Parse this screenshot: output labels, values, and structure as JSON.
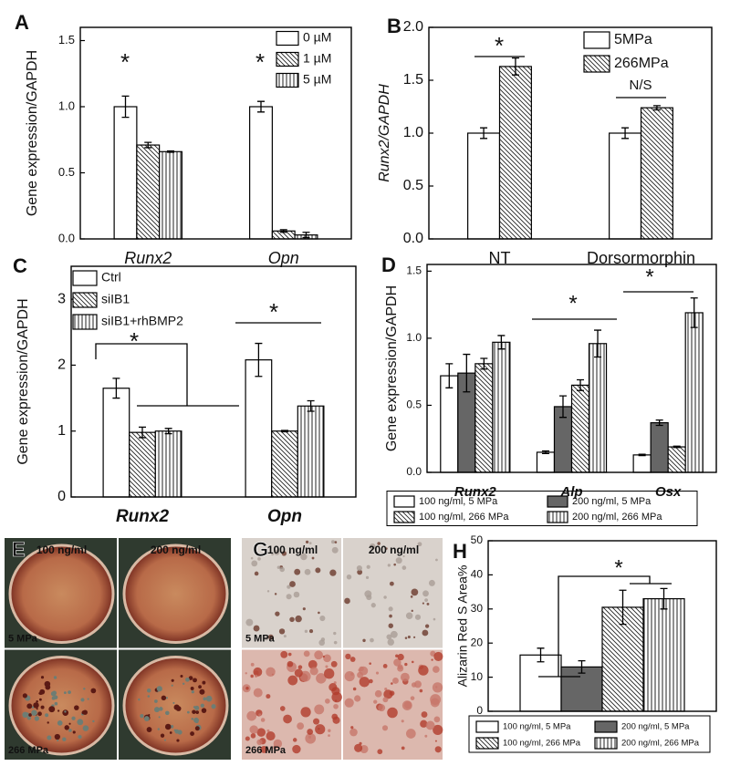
{
  "chart_data": [
    {
      "type": "bar",
      "panel": "A",
      "y_label": "Gene expression/GAPDH",
      "categories": [
        "Runx2",
        "Opn"
      ],
      "ylim": [
        0,
        1.6
      ],
      "yticks": [
        {
          "value": 0,
          "label": "0.0"
        },
        0.5,
        {
          "value": 1,
          "label": "1.0"
        },
        1.5
      ],
      "legend": "upper right",
      "series": [
        {
          "name": "0 µM",
          "color": "#ffffff",
          "hatch": "none",
          "values": [
            1.0,
            1.0
          ],
          "errors": [
            0.08,
            0.04
          ]
        },
        {
          "name": "1 µM",
          "color": "#ffffff",
          "hatch": "diagonal",
          "values": [
            0.71,
            0.06
          ],
          "errors": [
            0.02,
            0.01
          ]
        },
        {
          "name": "5 µM",
          "color": "#ffffff",
          "hatch": "vertical",
          "values": [
            0.66,
            0.03
          ],
          "errors": [
            0.005,
            0.02
          ]
        }
      ],
      "annotations": [
        "*",
        "*"
      ]
    },
    {
      "type": "bar",
      "panel": "B",
      "y_label": "Runx2/GAPDH",
      "categories": [
        "NT",
        "Dorsormorphin"
      ],
      "ylim": [
        0,
        2.0
      ],
      "yticks": [
        {
          "value": 0,
          "label": "0.0"
        },
        0.5,
        {
          "value": 1,
          "label": "1.0"
        },
        1.5,
        {
          "value": 2,
          "label": "2.0"
        }
      ],
      "legend": "upper right",
      "series": [
        {
          "name": "5MPa",
          "color": "#ffffff",
          "hatch": "none",
          "values": [
            1.0,
            1.0
          ],
          "errors": [
            0.05,
            0.05
          ]
        },
        {
          "name": "266MPa",
          "color": "#ffffff",
          "hatch": "diagonal",
          "values": [
            1.63,
            1.24
          ],
          "errors": [
            0.08,
            0.02
          ]
        }
      ],
      "annotations": [
        "*",
        "N/S"
      ]
    },
    {
      "type": "bar",
      "panel": "C",
      "y_label": "Gene expression/GAPDH",
      "categories": [
        "Runx2",
        "Opn"
      ],
      "ylim": [
        0,
        3.5
      ],
      "yticks": [
        0,
        1,
        2,
        3
      ],
      "legend": "upper left",
      "series": [
        {
          "name": "Ctrl",
          "color": "#ffffff",
          "hatch": "none",
          "values": [
            1.65,
            2.08
          ],
          "errors": [
            0.15,
            0.25
          ]
        },
        {
          "name": "siIB1",
          "color": "#ffffff",
          "hatch": "diagonal",
          "values": [
            0.98,
            1.0
          ],
          "errors": [
            0.08,
            0.01
          ]
        },
        {
          "name": "siIB1+rhBMP2",
          "color": "#ffffff",
          "hatch": "vertical",
          "values": [
            1.0,
            1.38
          ],
          "errors": [
            0.04,
            0.08
          ]
        }
      ],
      "annotations": [
        "*",
        "*"
      ]
    },
    {
      "type": "bar",
      "panel": "D",
      "y_label": "Gene expression/GAPDH",
      "categories": [
        "Runx2",
        "Alp",
        "Osx"
      ],
      "ylim": [
        0,
        1.55
      ],
      "yticks": [
        {
          "value": 0,
          "label": "0.0"
        },
        0.5,
        {
          "value": 1,
          "label": "1.0"
        },
        1.5
      ],
      "legend": "below",
      "series": [
        {
          "name": "100 ng/ml, 5 MPa",
          "color": "#ffffff",
          "hatch": "none",
          "values": [
            0.72,
            0.15,
            0.13
          ],
          "errors": [
            0.09,
            0.01,
            0.005
          ]
        },
        {
          "name": "200 ng/ml, 5 MPa",
          "color": "#666666",
          "hatch": "none",
          "values": [
            0.74,
            0.49,
            0.37
          ],
          "errors": [
            0.14,
            0.08,
            0.02
          ]
        },
        {
          "name": "100 ng/ml, 266 MPa",
          "color": "#ffffff",
          "hatch": "diagonal",
          "values": [
            0.81,
            0.65,
            0.19
          ],
          "errors": [
            0.04,
            0.04,
            0.005
          ]
        },
        {
          "name": "200 ng/ml, 266 MPa",
          "color": "#ffffff",
          "hatch": "vertical",
          "values": [
            0.97,
            0.96,
            1.19
          ],
          "errors": [
            0.05,
            0.1,
            0.11
          ]
        }
      ],
      "annotations": [
        "*",
        "*"
      ]
    },
    {
      "type": "bar",
      "panel": "H",
      "y_label": "Alizarin Red S Area%",
      "categories": [
        null
      ],
      "ylim": [
        0,
        50
      ],
      "yticks": [
        0,
        10,
        20,
        30,
        40,
        50
      ],
      "legend": "below",
      "series": [
        {
          "name": "100 ng/ml, 5 MPa",
          "color": "#ffffff",
          "hatch": "none",
          "values": [
            16.5
          ],
          "errors": [
            2
          ]
        },
        {
          "name": "200 ng/ml, 5 MPa",
          "color": "#666666",
          "hatch": "none",
          "values": [
            13
          ],
          "errors": [
            1.8
          ]
        },
        {
          "name": "100 ng/ml, 266 MPa",
          "color": "#ffffff",
          "hatch": "diagonal",
          "values": [
            30.5
          ],
          "errors": [
            5
          ]
        },
        {
          "name": "200 ng/ml, 266 MPa",
          "color": "#ffffff",
          "hatch": "vertical",
          "values": [
            33
          ],
          "errors": [
            3
          ]
        }
      ],
      "annotations": [
        "*"
      ]
    }
  ],
  "image_panels": [
    {
      "label": "E",
      "columns": [
        "100 ng/ml",
        "200 ng/ml"
      ],
      "rows": [
        "5 MPa",
        "266 MPa"
      ]
    },
    {
      "label": "G",
      "columns": [
        "100 ng/ml",
        "200 ng/ml"
      ],
      "rows": [
        "5 MPa",
        "266 MPa"
      ]
    }
  ]
}
